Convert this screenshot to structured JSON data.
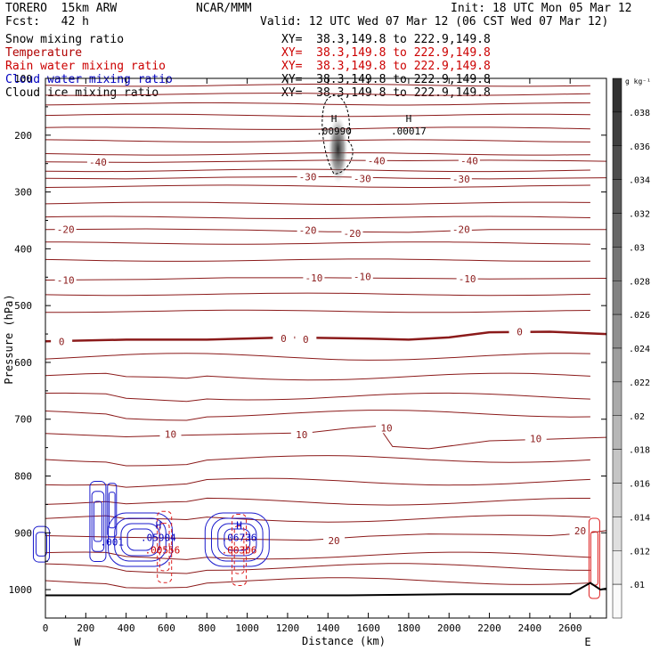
{
  "header": {
    "model": "TORERO  15km ARW",
    "center": "NCAR/MMM",
    "init": "Init: 18 UTC Mon 05 Mar 12",
    "fcst": "Fcst:   42 h",
    "valid": "Valid: 12 UTC Wed 07 Mar 12 (06 CST Wed 07 Mar 12)"
  },
  "fields": [
    {
      "name": "Snow mixing ratio",
      "xy": "XY=  38.3,149.8 to 222.9,149.8",
      "color": "#000000"
    },
    {
      "name": "Temperature",
      "xy": "XY=  38.3,149.8 to 222.9,149.8",
      "color": "#b00000"
    },
    {
      "name": "Rain water mixing ratio",
      "xy": "XY=  38.3,149.8 to 222.9,149.8",
      "color": "#cc0000"
    },
    {
      "name": "Cloud water mixing ratio",
      "xy": "XY=  38.3,149.8 to 222.9,149.8",
      "color": "#0000c0"
    },
    {
      "name": "Cloud ice mixing ratio",
      "xy": "XY=  38.3,149.8 to 222.9,149.8",
      "color": "#000000"
    }
  ],
  "colors": {
    "temperature": "#8b1a1a",
    "rain": "#dd2020",
    "cloud_water": "#1a1acc",
    "snow_shade": "#333333",
    "terrain": "#000000"
  },
  "chart_data": {
    "type": "cross-section contour",
    "xlabel": "Distance (km)",
    "ylabel": "Pressure (hPa)",
    "xlim": [
      0,
      2780
    ],
    "ylim": [
      1050,
      100
    ],
    "xticks": [
      "0",
      "200",
      "400",
      "600",
      "800",
      "1000",
      "1200",
      "1400",
      "1600",
      "1800",
      "2000",
      "2200",
      "2400",
      "2600"
    ],
    "xtick_values": [
      0,
      200,
      400,
      600,
      800,
      1000,
      1200,
      1400,
      1600,
      1800,
      2000,
      2200,
      2400,
      2600
    ],
    "yticks": [
      "100",
      "200",
      "300",
      "400",
      "500",
      "600",
      "700",
      "800",
      "900",
      "1000"
    ],
    "ytick_values": [
      100,
      200,
      300,
      400,
      500,
      600,
      700,
      800,
      900,
      1000
    ],
    "x_end_labels": {
      "left": "W",
      "right": "E"
    },
    "colorbar": {
      "unit": "g kg⁻¹",
      "labels": [
        ".038",
        ".036",
        ".034",
        ".032",
        ".03",
        ".028",
        ".026",
        ".024",
        ".022",
        ".02",
        ".018",
        ".016",
        ".014",
        ".012",
        ".01"
      ],
      "values": [
        0.038,
        0.036,
        0.034,
        0.032,
        0.03,
        0.028,
        0.026,
        0.024,
        0.022,
        0.02,
        0.018,
        0.016,
        0.014,
        0.012,
        0.01
      ]
    },
    "temperature_isotherms": [
      {
        "label": "-40",
        "label_positions": [
          [
            260,
            247
          ],
          [
            1640,
            245
          ],
          [
            2100,
            245
          ]
        ],
        "points": [
          [
            0,
            247
          ],
          [
            500,
            248
          ],
          [
            1000,
            246
          ],
          [
            1400,
            244
          ],
          [
            1800,
            245
          ],
          [
            2200,
            244
          ],
          [
            2600,
            245
          ],
          [
            2780,
            246
          ]
        ]
      },
      {
        "label": "-30",
        "label_positions": [
          [
            1300,
            273
          ],
          [
            1570,
            276
          ],
          [
            2060,
            277
          ]
        ],
        "points": [
          [
            0,
            276
          ],
          [
            400,
            277
          ],
          [
            900,
            274
          ],
          [
            1400,
            273
          ],
          [
            1800,
            276
          ],
          [
            2200,
            277
          ],
          [
            2780,
            275
          ]
        ]
      },
      {
        "label": "-20",
        "label_positions": [
          [
            100,
            366
          ],
          [
            1300,
            367
          ],
          [
            1520,
            373
          ],
          [
            2060,
            366
          ]
        ],
        "points": [
          [
            0,
            366
          ],
          [
            500,
            365
          ],
          [
            1000,
            367
          ],
          [
            1400,
            370
          ],
          [
            1800,
            371
          ],
          [
            2200,
            366
          ],
          [
            2780,
            366
          ]
        ]
      },
      {
        "label": "-10",
        "label_positions": [
          [
            100,
            455
          ],
          [
            1330,
            451
          ],
          [
            1570,
            449
          ],
          [
            2090,
            453
          ]
        ],
        "points": [
          [
            0,
            455
          ],
          [
            500,
            454
          ],
          [
            900,
            451
          ],
          [
            1400,
            451
          ],
          [
            1800,
            452
          ],
          [
            2200,
            453
          ],
          [
            2780,
            452
          ]
        ]
      },
      {
        "label": "0",
        "label_positions": [
          [
            80,
            563
          ],
          [
            1180,
            558
          ],
          [
            1290,
            559
          ],
          [
            2350,
            546
          ]
        ],
        "points": [
          [
            0,
            563
          ],
          [
            400,
            560
          ],
          [
            800,
            560
          ],
          [
            1200,
            556
          ],
          [
            1600,
            558
          ],
          [
            1800,
            560
          ],
          [
            2000,
            556
          ],
          [
            2200,
            547
          ],
          [
            2500,
            546
          ],
          [
            2780,
            550
          ]
        ]
      },
      {
        "label": "10",
        "label_positions": [
          [
            620,
            726
          ],
          [
            1270,
            727
          ],
          [
            1690,
            715
          ],
          [
            2430,
            734
          ]
        ],
        "points": [
          [
            0,
            725
          ],
          [
            400,
            731
          ],
          [
            700,
            728
          ],
          [
            1000,
            726
          ],
          [
            1300,
            724
          ],
          [
            1500,
            716
          ],
          [
            1650,
            712
          ],
          [
            1720,
            748
          ],
          [
            1900,
            752
          ],
          [
            2200,
            738
          ],
          [
            2500,
            735
          ],
          [
            2780,
            732
          ]
        ]
      },
      {
        "label": "-20",
        "label_positions": [],
        "points": []
      },
      {
        "label": "20",
        "label_positions": [
          [
            1430,
            914
          ],
          [
            2650,
            896
          ]
        ],
        "points": [
          [
            0,
            905
          ],
          [
            400,
            908
          ],
          [
            800,
            910
          ],
          [
            1300,
            913
          ],
          [
            1600,
            906
          ],
          [
            1900,
            902
          ],
          [
            2200,
            903
          ],
          [
            2500,
            905
          ],
          [
            2700,
            900
          ],
          [
            2780,
            896
          ]
        ]
      }
    ],
    "max_labels": [
      {
        "text": "H",
        "value": ".00990",
        "x": 1430,
        "p": 186,
        "color": "#000000"
      },
      {
        "text": "H",
        "value": ".00017",
        "x": 1800,
        "p": 186,
        "color": "#000000"
      },
      {
        "text": "H",
        "value": ".05904",
        "x": 560,
        "p": 902,
        "color": "#0000c0"
      },
      {
        "text": "",
        "value": ".00556",
        "x": 580,
        "p": 924,
        "color": "#cc0000"
      },
      {
        "text": "H",
        "value": ".06736",
        "x": 960,
        "p": 902,
        "color": "#0000c0"
      },
      {
        "text": "",
        "value": ".00306",
        "x": 960,
        "p": 924,
        "color": "#cc0000"
      },
      {
        "text": "",
        "value": ".001",
        "x": 330,
        "p": 910,
        "color": "#0000c0"
      }
    ],
    "snow_max": {
      "x": 1450,
      "p": 225,
      "value": 0.0099
    }
  }
}
